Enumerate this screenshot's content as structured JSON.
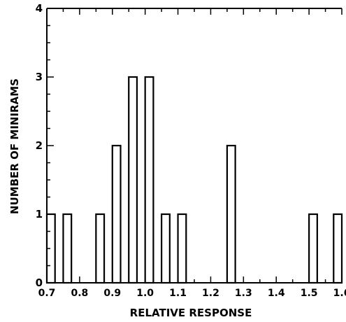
{
  "chart_data": {
    "type": "bar",
    "title": "",
    "xlabel": "RELATIVE RESPONSE",
    "ylabel": "NUMBER OF MINIRAMS",
    "xlim": [
      0.7,
      1.6
    ],
    "ylim": [
      0,
      4
    ],
    "xticks": [
      "0.7",
      "0.8",
      "0.9",
      "1.0",
      "1.1",
      "1.2",
      "1.3",
      "1.4",
      "1.5",
      "1.6"
    ],
    "yticks": [
      "0",
      "1",
      "2",
      "3",
      "4"
    ],
    "bin_width": 0.025,
    "bars": [
      {
        "x": 0.7125,
        "value": 1
      },
      {
        "x": 0.7625,
        "value": 1
      },
      {
        "x": 0.8625,
        "value": 1
      },
      {
        "x": 0.9125,
        "value": 2
      },
      {
        "x": 0.9625,
        "value": 3
      },
      {
        "x": 1.0125,
        "value": 3
      },
      {
        "x": 1.0625,
        "value": 1
      },
      {
        "x": 1.1125,
        "value": 1
      },
      {
        "x": 1.2625,
        "value": 2
      },
      {
        "x": 1.5125,
        "value": 1
      },
      {
        "x": 1.5875,
        "value": 1
      }
    ],
    "grid": false,
    "legend": "none"
  }
}
